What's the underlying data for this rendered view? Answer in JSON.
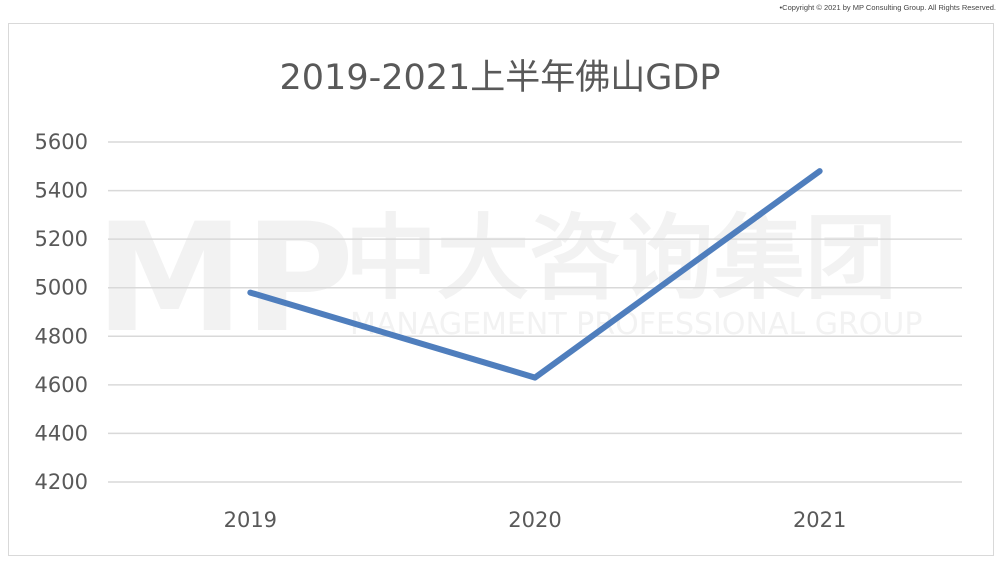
{
  "copyright": "•Copyright © 2021 by MP Consulting Group. All Rights Reserved.",
  "watermark": {
    "logo": "MP",
    "name_cn": "中大咨询集团",
    "name_en": "MANAGEMENT PROFESSIONAL GROUP"
  },
  "colors": {
    "series": "#4f7ebd",
    "grid": "#d9d9d9",
    "text": "#595959"
  },
  "chart_data": {
    "type": "line",
    "title": "2019-2021上半年佛山GDP",
    "xlabel": "",
    "ylabel": "",
    "categories": [
      "2019",
      "2020",
      "2021"
    ],
    "series": [
      {
        "values": [
          4980,
          4630,
          5480
        ]
      }
    ],
    "ylim": [
      4200,
      5600
    ],
    "yticks": [
      5600,
      5400,
      5200,
      5000,
      4800,
      4600,
      4400,
      4200
    ],
    "grid": true,
    "legend": "none"
  }
}
